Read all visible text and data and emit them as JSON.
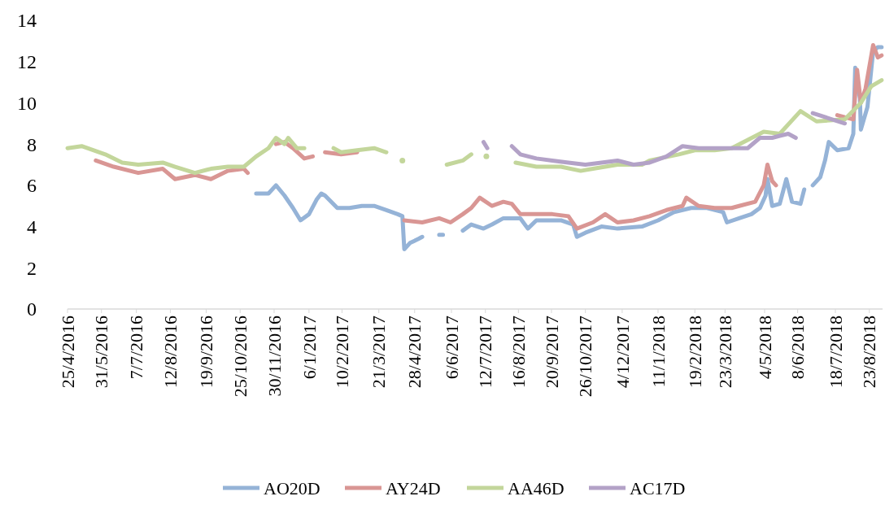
{
  "chart_data": {
    "type": "line",
    "xlim": [
      "2016-04-25",
      "2018-09-06"
    ],
    "ylim": [
      0,
      14
    ],
    "yticks": [
      0,
      2,
      4,
      6,
      8,
      10,
      12,
      14
    ],
    "xticks": [
      {
        "value": "2016-04-25",
        "label": "25/4/2016"
      },
      {
        "value": "2016-05-31",
        "label": "31/5/2016"
      },
      {
        "value": "2016-07-07",
        "label": "7/7/2016"
      },
      {
        "value": "2016-08-12",
        "label": "12/8/2016"
      },
      {
        "value": "2016-09-19",
        "label": "19/9/2016"
      },
      {
        "value": "2016-10-25",
        "label": "25/10/2016"
      },
      {
        "value": "2016-11-30",
        "label": "30/11/2016"
      },
      {
        "value": "2017-01-06",
        "label": "6/1/2017"
      },
      {
        "value": "2017-02-10",
        "label": "10/2/2017"
      },
      {
        "value": "2017-03-21",
        "label": "21/3/2017"
      },
      {
        "value": "2017-04-28",
        "label": "28/4/2017"
      },
      {
        "value": "2017-06-06",
        "label": "6/6/2017"
      },
      {
        "value": "2017-07-12",
        "label": "12/7/2017"
      },
      {
        "value": "2017-08-16",
        "label": "16/8/2017"
      },
      {
        "value": "2017-09-20",
        "label": "20/9/2017"
      },
      {
        "value": "2017-10-26",
        "label": "26/10/2017"
      },
      {
        "value": "2017-12-04",
        "label": "4/12/2017"
      },
      {
        "value": "2018-01-11",
        "label": "11/1/2018"
      },
      {
        "value": "2018-02-19",
        "label": "19/2/2018"
      },
      {
        "value": "2018-03-23",
        "label": "23/3/2018"
      },
      {
        "value": "2018-05-04",
        "label": "4/5/2018"
      },
      {
        "value": "2018-06-08",
        "label": "8/6/2018"
      },
      {
        "value": "2018-07-18",
        "label": "18/7/2018"
      },
      {
        "value": "2018-08-23",
        "label": "23/8/2018"
      }
    ],
    "grid": false,
    "legend": "bottom",
    "line_style": "solid",
    "marker": "none",
    "series": [
      {
        "name": "AO20D",
        "color": "#95b3d7",
        "x": [
          "2016-11-11",
          "2016-11-24",
          "2016-12-02",
          "2016-12-11",
          "2016-12-20",
          "2016-12-28",
          "2017-01-06",
          "2017-01-14",
          "2017-01-19",
          "2017-01-23",
          "2017-02-05",
          "2017-02-18",
          "2017-03-03",
          "2017-03-16",
          "2017-03-29",
          "2017-04-10",
          "2017-04-15",
          "2017-04-17",
          "2017-04-23",
          "2017-05-02",
          "2017-05-06",
          "2017-05-15",
          "2017-05-24",
          "2017-05-28",
          "2017-06-10",
          "2017-06-18",
          "2017-06-27",
          "2017-07-10",
          "2017-07-19",
          "2017-07-31",
          "2017-08-18",
          "2017-08-26",
          "2017-09-04",
          "2017-09-30",
          "2017-10-13",
          "2017-10-17",
          "2017-10-26",
          "2017-11-12",
          "2017-11-29",
          "2017-12-25",
          "2018-01-11",
          "2018-01-28",
          "2018-02-15",
          "2018-03-04",
          "2018-03-21",
          "2018-03-25",
          "2018-04-07",
          "2018-04-20",
          "2018-04-29",
          "2018-05-05",
          "2018-05-07",
          "2018-05-12",
          "2018-05-20",
          "2018-05-27",
          "2018-06-02",
          "2018-06-11",
          "2018-06-15",
          "2018-06-20",
          "2018-06-24",
          "2018-07-02",
          "2018-07-07",
          "2018-07-11",
          "2018-07-20",
          "2018-08-01",
          "2018-08-06",
          "2018-08-08",
          "2018-08-13",
          "2018-08-14",
          "2018-08-21",
          "2018-08-27",
          "2018-09-01",
          "2018-09-05"
        ],
        "values": [
          5.6,
          5.6,
          6.0,
          5.5,
          4.9,
          4.3,
          4.6,
          5.3,
          5.6,
          5.5,
          4.9,
          4.9,
          5.0,
          5.0,
          4.8,
          4.6,
          4.5,
          2.9,
          3.2,
          3.4,
          3.5,
          null,
          3.6,
          3.6,
          null,
          3.8,
          4.1,
          3.9,
          4.1,
          4.4,
          4.4,
          3.9,
          4.3,
          4.3,
          4.1,
          3.5,
          3.7,
          4.0,
          3.9,
          4.0,
          4.3,
          4.7,
          4.9,
          4.9,
          4.7,
          4.2,
          4.4,
          4.6,
          4.9,
          5.5,
          6.3,
          5.0,
          5.1,
          6.3,
          5.2,
          5.1,
          5.8,
          null,
          6.0,
          6.4,
          7.2,
          8.1,
          7.7,
          7.8,
          8.5,
          11.7,
          10.2,
          8.7,
          9.8,
          12.5,
          12.7,
          12.7
        ]
      },
      {
        "name": "AY24D",
        "color": "#d99694",
        "x": [
          "2016-05-25",
          "2016-06-13",
          "2016-07-09",
          "2016-08-04",
          "2016-08-17",
          "2016-09-07",
          "2016-09-24",
          "2016-10-12",
          "2016-10-29",
          "2016-11-02",
          "2016-11-15",
          "2016-12-02",
          "2016-12-11",
          "2016-12-20",
          "2017-01-01",
          "2017-01-10",
          "2017-01-14",
          "2017-01-23",
          "2017-02-09",
          "2017-02-26",
          "2017-04-02",
          "2017-04-17",
          "2017-05-06",
          "2017-05-24",
          "2017-06-05",
          "2017-06-18",
          "2017-06-27",
          "2017-07-06",
          "2017-07-19",
          "2017-07-31",
          "2017-08-09",
          "2017-08-18",
          "2017-09-21",
          "2017-10-08",
          "2017-10-17",
          "2017-11-03",
          "2017-11-16",
          "2017-11-29",
          "2017-12-16",
          "2018-01-02",
          "2018-01-20",
          "2018-02-06",
          "2018-02-10",
          "2018-02-23",
          "2018-03-12",
          "2018-03-30",
          "2018-04-07",
          "2018-04-24",
          "2018-05-03",
          "2018-05-07",
          "2018-05-12",
          "2018-05-16",
          "2018-06-01",
          "2018-07-20",
          "2018-07-28",
          "2018-08-06",
          "2018-08-10",
          "2018-08-14",
          "2018-08-19",
          "2018-08-27",
          "2018-09-01",
          "2018-09-05"
        ],
        "values": [
          7.2,
          6.9,
          6.6,
          6.8,
          6.3,
          6.5,
          6.3,
          6.7,
          6.8,
          6.6,
          null,
          8.0,
          8.1,
          7.8,
          7.3,
          7.4,
          null,
          7.6,
          7.5,
          7.6,
          null,
          4.3,
          4.2,
          4.4,
          4.2,
          4.6,
          4.9,
          5.4,
          5.0,
          5.2,
          5.1,
          4.6,
          4.6,
          4.5,
          3.9,
          4.2,
          4.6,
          4.2,
          4.3,
          4.5,
          4.8,
          5.0,
          5.4,
          5.0,
          4.9,
          4.9,
          5.0,
          5.2,
          6.0,
          7.0,
          6.2,
          6.0,
          null,
          9.4,
          9.3,
          9.2,
          11.6,
          10.0,
          10.7,
          12.8,
          12.2,
          12.3
        ]
      },
      {
        "name": "AA46D",
        "color": "#c3d69b",
        "x": [
          "2016-04-25",
          "2016-05-10",
          "2016-06-04",
          "2016-06-22",
          "2016-07-09",
          "2016-08-04",
          "2016-08-17",
          "2016-09-07",
          "2016-09-24",
          "2016-10-12",
          "2016-10-29",
          "2016-11-11",
          "2016-11-24",
          "2016-12-02",
          "2016-12-11",
          "2016-12-15",
          "2016-12-24",
          "2017-01-01",
          "2017-01-10",
          "2017-02-01",
          "2017-02-09",
          "2017-02-26",
          "2017-03-16",
          "2017-03-29",
          "2017-04-10",
          "2017-04-15",
          "2017-05-24",
          "2017-06-01",
          "2017-06-18",
          "2017-06-27",
          "2017-07-06",
          "2017-07-13",
          "2017-07-31",
          "2017-08-13",
          "2017-09-04",
          "2017-09-30",
          "2017-10-21",
          "2017-11-03",
          "2017-11-29",
          "2017-12-25",
          "2018-01-02",
          "2018-02-02",
          "2018-02-19",
          "2018-03-12",
          "2018-03-30",
          "2018-05-03",
          "2018-05-20",
          "2018-06-11",
          "2018-06-28",
          "2018-07-28",
          "2018-08-14",
          "2018-08-25",
          "2018-09-05"
        ],
        "values": [
          7.8,
          7.9,
          7.5,
          7.1,
          7.0,
          7.1,
          6.9,
          6.6,
          6.8,
          6.9,
          6.9,
          7.4,
          7.8,
          8.3,
          8.0,
          8.3,
          7.8,
          7.8,
          null,
          7.8,
          7.6,
          7.7,
          7.8,
          7.6,
          null,
          7.2,
          null,
          7.0,
          7.2,
          7.5,
          null,
          7.4,
          null,
          7.1,
          6.9,
          6.9,
          6.7,
          6.8,
          7.0,
          7.0,
          7.2,
          7.5,
          7.7,
          7.7,
          7.8,
          8.6,
          8.5,
          9.6,
          9.1,
          9.2,
          10.0,
          10.8,
          11.1
        ]
      },
      {
        "name": "AC17D",
        "color": "#b3a2c7",
        "x": [
          "2017-07-10",
          "2017-07-14",
          "2017-07-31",
          "2017-08-09",
          "2017-08-18",
          "2017-09-04",
          "2017-09-21",
          "2017-10-08",
          "2017-10-26",
          "2017-11-12",
          "2017-11-29",
          "2017-12-16",
          "2018-01-02",
          "2018-01-20",
          "2018-02-06",
          "2018-02-23",
          "2018-03-12",
          "2018-04-16",
          "2018-04-29",
          "2018-05-12",
          "2018-05-20",
          "2018-05-29",
          "2018-06-06",
          "2018-06-15",
          "2018-06-24",
          "2018-07-28"
        ],
        "values": [
          8.1,
          7.8,
          null,
          7.9,
          7.5,
          7.3,
          7.2,
          7.1,
          7.0,
          7.1,
          7.2,
          7.0,
          7.1,
          7.4,
          7.9,
          7.8,
          7.8,
          7.8,
          8.3,
          8.3,
          8.4,
          8.5,
          8.3,
          null,
          9.5,
          9.0
        ]
      }
    ]
  }
}
